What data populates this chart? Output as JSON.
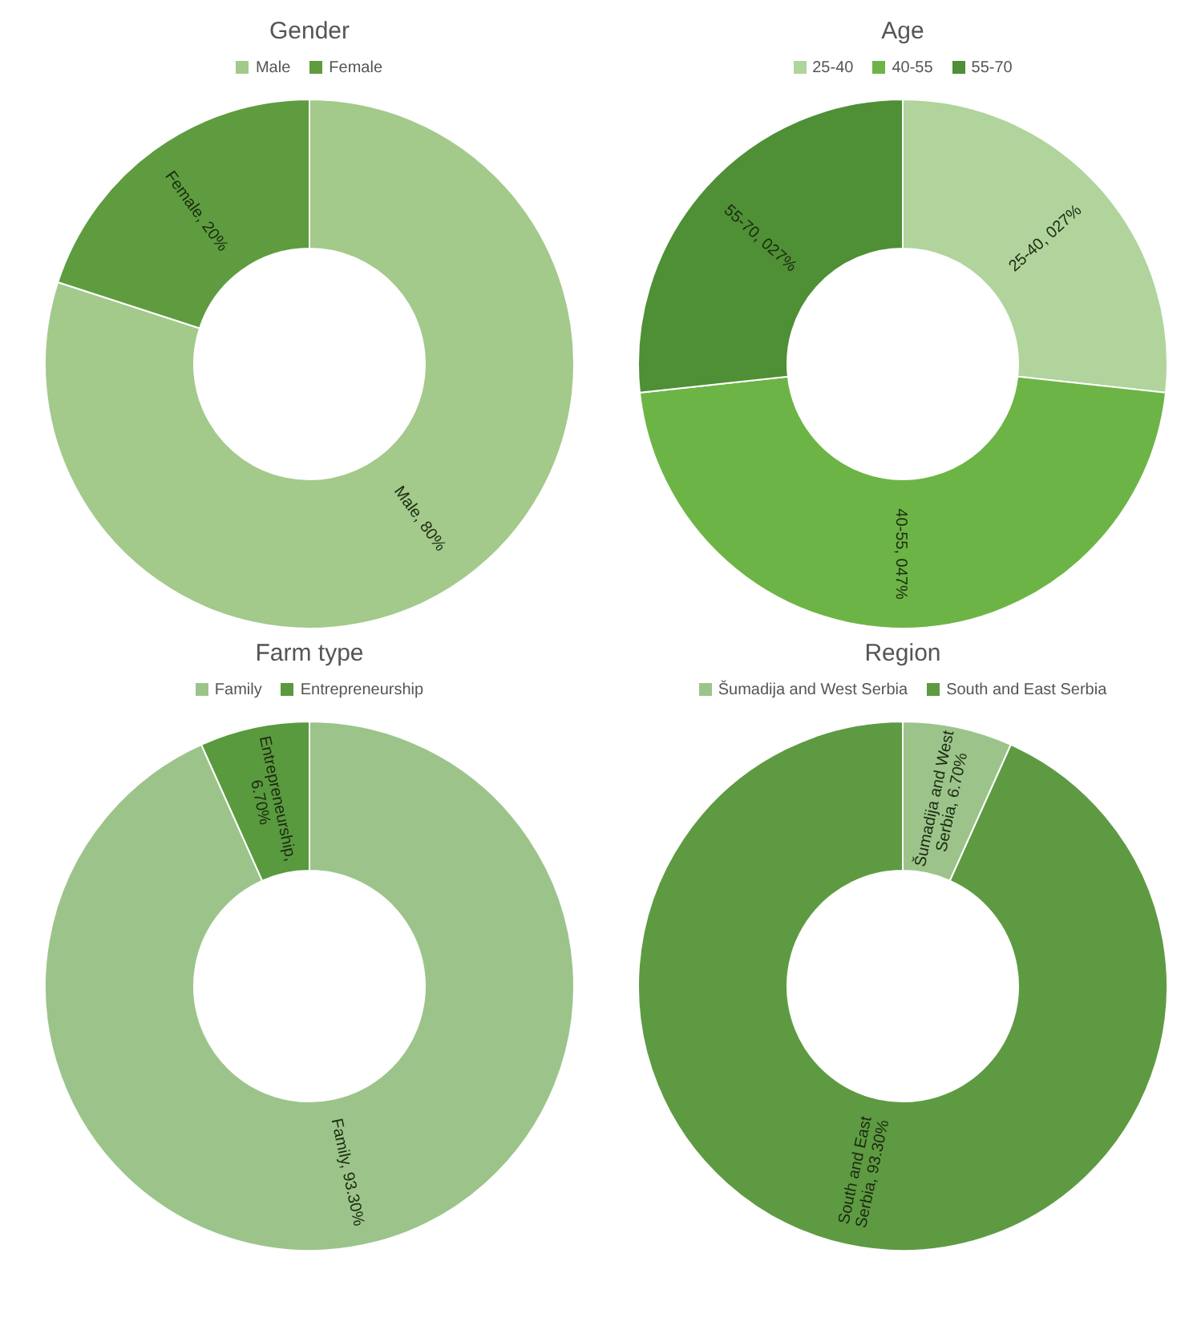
{
  "chart_data": [
    {
      "type": "donut",
      "title": "Gender",
      "categories": [
        "Male",
        "Female"
      ],
      "values": [
        80,
        20
      ],
      "colors": [
        "#a3c98b",
        "#5e9c3f"
      ],
      "value_labels": [
        "Male, 80%",
        "Female, 20%"
      ],
      "legend": "top"
    },
    {
      "type": "donut",
      "title": "Age",
      "categories": [
        "25-40",
        "40-55",
        "55-70"
      ],
      "values": [
        27,
        47,
        27
      ],
      "colors": [
        "#b0d49c",
        "#6db446",
        "#4f8f35"
      ],
      "value_labels": [
        "25-40, 027%",
        "40-55, 047%",
        "55-70, 027%"
      ],
      "legend": "top"
    },
    {
      "type": "donut",
      "title": "Farm type",
      "categories": [
        "Family",
        "Entrepreneurship"
      ],
      "values": [
        93.3,
        6.7
      ],
      "colors": [
        "#9cc48a",
        "#5a9a3e"
      ],
      "value_labels": [
        "Family, 93.30%",
        "Entrepreneurship, 6.70%"
      ],
      "legend": "top"
    },
    {
      "type": "donut",
      "title": "Region",
      "categories": [
        "Šumadija and West Serbia",
        "South and East Serbia"
      ],
      "values": [
        6.7,
        93.3
      ],
      "colors": [
        "#9cc48a",
        "#5e9a42"
      ],
      "value_labels": [
        "Šumadija and West Serbia, 6.70%",
        "South and East Serbia, 93.30%"
      ],
      "legend": "top"
    }
  ]
}
